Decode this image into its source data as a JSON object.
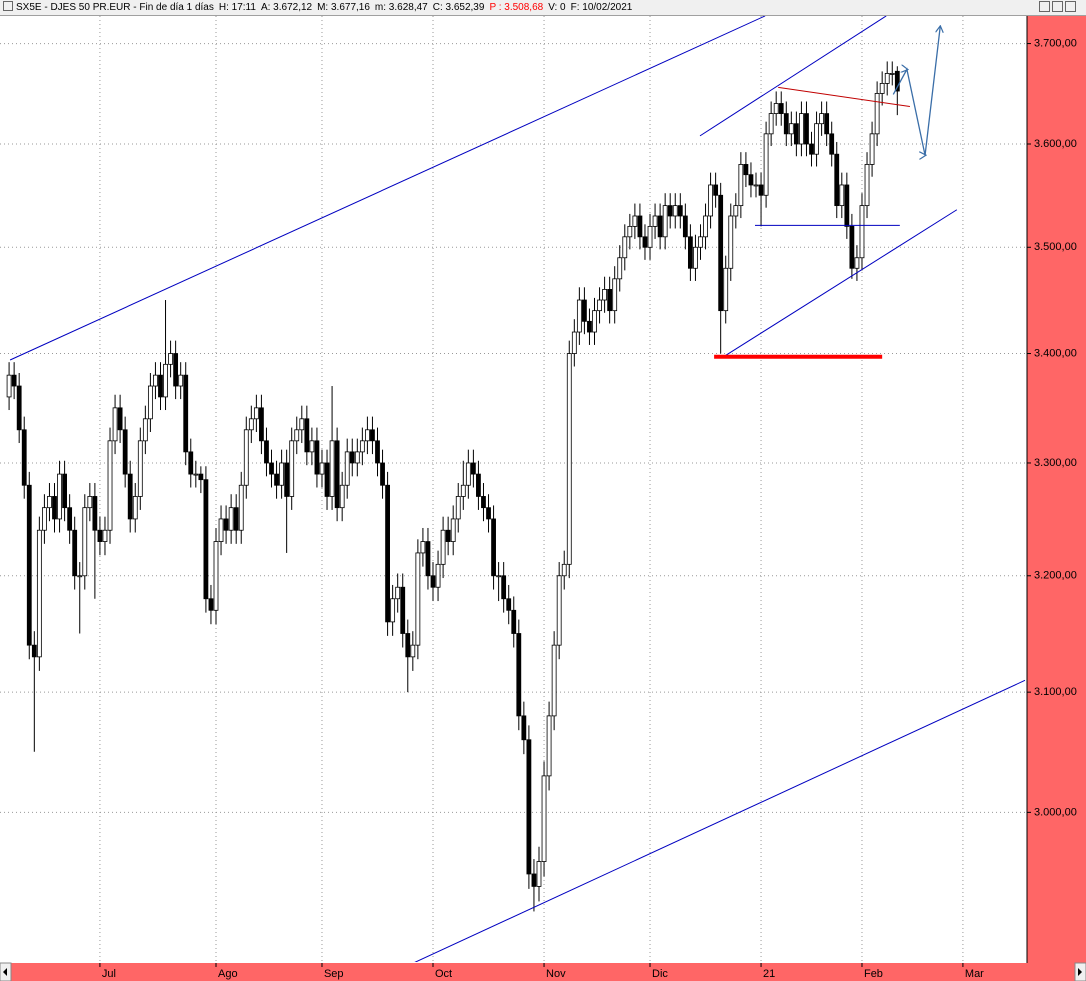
{
  "header": {
    "symbol": "SX5E - DJES 50 PR.EUR - Fin de día 1 días",
    "fields": [
      "H: 17:11",
      "A: 3.672,12",
      "M: 3.677,16",
      "m: 3.628,47",
      "C: 3.652,39",
      "P : 3.508,68",
      "V: 0",
      "F: 10/02/2021"
    ],
    "highlight_field": 5,
    "highlight_color": "#ff0000"
  },
  "chart_data": {
    "type": "candlestick",
    "log_scale": true,
    "grid": true,
    "up_color": "#ffffff",
    "down_color": "#000000",
    "xlim": [
      -1.8,
      201.5
    ],
    "ylim": [
      2880,
      3732
    ],
    "xticks": [
      {
        "value": 18,
        "label": "Jul"
      },
      {
        "value": 41,
        "label": "Ago"
      },
      {
        "value": 62,
        "label": "Sep"
      },
      {
        "value": 84,
        "label": "Oct"
      },
      {
        "value": 106,
        "label": "Nov"
      },
      {
        "value": 127,
        "label": "Dic"
      },
      {
        "value": 149,
        "label": "21"
      },
      {
        "value": 169,
        "label": "Feb"
      },
      {
        "value": 189,
        "label": "Mar"
      }
    ],
    "yticks": [
      {
        "value": 3000,
        "label": "3.000,00"
      },
      {
        "value": 3100,
        "label": "3.100,00"
      },
      {
        "value": 3200,
        "label": "3.200,00"
      },
      {
        "value": 3300,
        "label": "3.300,00"
      },
      {
        "value": 3400,
        "label": "3.400,00"
      },
      {
        "value": 3500,
        "label": "3.500,00"
      },
      {
        "value": 3600,
        "label": "3.600,00"
      },
      {
        "value": 3700,
        "label": "3.700,00"
      }
    ],
    "open": [
      3360,
      3380,
      3370,
      3330,
      3280,
      3140,
      3130,
      3240,
      3260,
      3270,
      3250,
      3290,
      3260,
      3240,
      3200,
      3200,
      3260,
      3270,
      3240,
      3230,
      3240,
      3320,
      3350,
      3330,
      3290,
      3250,
      3270,
      3320,
      3340,
      3370,
      3380,
      3360,
      3390,
      3400,
      3370,
      3380,
      3310,
      3290,
      3290,
      3285,
      3180,
      3170,
      3230,
      3250,
      3240,
      3260,
      3240,
      3280,
      3330,
      3340,
      3350,
      3320,
      3300,
      3290,
      3280,
      3300,
      3270,
      3320,
      3330,
      3340,
      3310,
      3320,
      3290,
      3300,
      3270,
      3320,
      3260,
      3280,
      3310,
      3300,
      3310,
      3320,
      3330,
      3320,
      3300,
      3280,
      3160,
      3180,
      3190,
      3150,
      3130,
      3140,
      3220,
      3230,
      3200,
      3190,
      3210,
      3240,
      3230,
      3250,
      3270,
      3280,
      3300,
      3290,
      3270,
      3260,
      3250,
      3200,
      3200,
      3180,
      3170,
      3150,
      3080,
      3060,
      2950,
      2940,
      2960,
      3030,
      3080,
      3140,
      3200,
      3210,
      3400,
      3420,
      3450,
      3430,
      3420,
      3440,
      3450,
      3460,
      3440,
      3470,
      3490,
      3510,
      3520,
      3530,
      3510,
      3500,
      3520,
      3530,
      3510,
      3540,
      3530,
      3540,
      3530,
      3510,
      3480,
      3500,
      3510,
      3530,
      3560,
      3550,
      3440,
      3480,
      3530,
      3540,
      3580,
      3570,
      3560,
      3560,
      3550,
      3610,
      3630,
      3640,
      3630,
      3610,
      3620,
      3600,
      3630,
      3600,
      3590,
      3620,
      3630,
      3610,
      3590,
      3540,
      3560,
      3520,
      3480,
      3490,
      3540,
      3580,
      3610,
      3650,
      3660,
      3670,
      3672.12
    ],
    "high": [
      3392,
      3392,
      3382,
      3342,
      3292,
      3152,
      3252,
      3272,
      3282,
      3282,
      3302,
      3302,
      3272,
      3252,
      3212,
      3272,
      3282,
      3282,
      3252,
      3252,
      3332,
      3362,
      3362,
      3342,
      3302,
      3282,
      3332,
      3352,
      3382,
      3392,
      3392,
      3450,
      3412,
      3412,
      3392,
      3392,
      3322,
      3302,
      3297,
      3297,
      3192,
      3242,
      3262,
      3262,
      3272,
      3272,
      3292,
      3342,
      3352,
      3362,
      3362,
      3332,
      3312,
      3302,
      3312,
      3312,
      3332,
      3342,
      3352,
      3352,
      3332,
      3332,
      3312,
      3312,
      3370,
      3332,
      3292,
      3322,
      3322,
      3322,
      3332,
      3342,
      3342,
      3332,
      3312,
      3292,
      3192,
      3202,
      3202,
      3162,
      3152,
      3232,
      3242,
      3242,
      3212,
      3222,
      3252,
      3252,
      3262,
      3282,
      3302,
      3312,
      3312,
      3302,
      3282,
      3272,
      3262,
      3212,
      3212,
      3192,
      3182,
      3162,
      3092,
      3072,
      2962,
      2972,
      3042,
      3092,
      3152,
      3212,
      3222,
      3412,
      3432,
      3462,
      3462,
      3442,
      3452,
      3462,
      3472,
      3472,
      3482,
      3502,
      3522,
      3532,
      3542,
      3542,
      3522,
      3532,
      3542,
      3542,
      3552,
      3552,
      3552,
      3552,
      3542,
      3522,
      3512,
      3522,
      3542,
      3572,
      3572,
      3562,
      3492,
      3542,
      3552,
      3592,
      3592,
      3582,
      3572,
      3572,
      3622,
      3642,
      3652,
      3652,
      3642,
      3632,
      3632,
      3642,
      3642,
      3612,
      3632,
      3642,
      3642,
      3622,
      3602,
      3572,
      3572,
      3532,
      3502,
      3552,
      3592,
      3622,
      3662,
      3672,
      3682,
      3682,
      3677.16
    ],
    "low": [
      3348,
      3358,
      3318,
      3268,
      3128,
      3050,
      3118,
      3228,
      3248,
      3238,
      3238,
      3248,
      3228,
      3188,
      3150,
      3188,
      3248,
      3180,
      3218,
      3218,
      3228,
      3308,
      3318,
      3278,
      3238,
      3238,
      3258,
      3308,
      3328,
      3358,
      3348,
      3348,
      3378,
      3358,
      3358,
      3298,
      3278,
      3278,
      3273,
      3168,
      3158,
      3158,
      3218,
      3228,
      3228,
      3228,
      3228,
      3268,
      3318,
      3328,
      3308,
      3288,
      3278,
      3268,
      3268,
      3220,
      3258,
      3308,
      3318,
      3298,
      3298,
      3278,
      3278,
      3258,
      3258,
      3248,
      3248,
      3268,
      3288,
      3288,
      3298,
      3308,
      3308,
      3288,
      3268,
      3148,
      3148,
      3168,
      3138,
      3100,
      3118,
      3128,
      3208,
      3188,
      3178,
      3178,
      3198,
      3218,
      3218,
      3238,
      3258,
      3268,
      3278,
      3258,
      3248,
      3238,
      3188,
      3178,
      3168,
      3158,
      3138,
      3068,
      3048,
      2938,
      2920,
      2928,
      2948,
      3018,
      3068,
      3128,
      3188,
      3198,
      3388,
      3408,
      3418,
      3408,
      3408,
      3428,
      3438,
      3428,
      3428,
      3458,
      3478,
      3498,
      3508,
      3498,
      3488,
      3488,
      3508,
      3498,
      3498,
      3518,
      3518,
      3518,
      3498,
      3468,
      3468,
      3488,
      3498,
      3518,
      3538,
      3400,
      3428,
      3468,
      3518,
      3528,
      3558,
      3548,
      3548,
      3520,
      3538,
      3598,
      3618,
      3618,
      3598,
      3598,
      3588,
      3588,
      3588,
      3578,
      3578,
      3608,
      3598,
      3578,
      3528,
      3528,
      3508,
      3470,
      3468,
      3478,
      3528,
      3568,
      3598,
      3638,
      3648,
      3658,
      3628.47
    ],
    "close": [
      3380,
      3370,
      3330,
      3280,
      3140,
      3130,
      3240,
      3260,
      3270,
      3250,
      3290,
      3260,
      3240,
      3200,
      3200,
      3260,
      3270,
      3240,
      3230,
      3240,
      3320,
      3350,
      3330,
      3290,
      3250,
      3270,
      3320,
      3340,
      3370,
      3380,
      3360,
      3390,
      3400,
      3370,
      3380,
      3310,
      3290,
      3290,
      3285,
      3180,
      3170,
      3230,
      3250,
      3240,
      3260,
      3240,
      3280,
      3330,
      3340,
      3350,
      3320,
      3300,
      3290,
      3280,
      3300,
      3270,
      3320,
      3330,
      3340,
      3310,
      3320,
      3290,
      3300,
      3270,
      3320,
      3260,
      3280,
      3310,
      3300,
      3310,
      3320,
      3330,
      3320,
      3300,
      3280,
      3160,
      3180,
      3190,
      3150,
      3130,
      3140,
      3220,
      3230,
      3200,
      3190,
      3210,
      3240,
      3230,
      3250,
      3270,
      3280,
      3300,
      3290,
      3270,
      3260,
      3250,
      3200,
      3200,
      3180,
      3170,
      3150,
      3080,
      3060,
      2950,
      2940,
      2960,
      3030,
      3080,
      3140,
      3200,
      3210,
      3400,
      3420,
      3450,
      3430,
      3420,
      3440,
      3450,
      3460,
      3440,
      3470,
      3490,
      3510,
      3520,
      3530,
      3510,
      3500,
      3520,
      3530,
      3510,
      3540,
      3530,
      3540,
      3530,
      3510,
      3480,
      3500,
      3510,
      3530,
      3560,
      3550,
      3440,
      3480,
      3530,
      3540,
      3580,
      3570,
      3560,
      3560,
      3550,
      3610,
      3630,
      3640,
      3630,
      3610,
      3620,
      3600,
      3630,
      3600,
      3590,
      3620,
      3630,
      3610,
      3590,
      3540,
      3560,
      3520,
      3480,
      3490,
      3540,
      3580,
      3610,
      3650,
      3660,
      3670,
      3670,
      3652.39
    ],
    "lines": [
      {
        "color": "#0000c0",
        "width": 1,
        "x": [
          0.2,
          149.8
        ],
        "y": [
          3394,
          3728
        ]
      },
      {
        "color": "#0000c0",
        "width": 1,
        "x": [
          80,
          201.3
        ],
        "y": [
          2879,
          3110
        ]
      },
      {
        "color": "#0000c0",
        "width": 1,
        "x": [
          136.9,
          173.8
        ],
        "y": [
          3608,
          3728
        ]
      },
      {
        "color": "#0000c0",
        "width": 1,
        "x": [
          141.9,
          187.8
        ],
        "y": [
          3398,
          3536
        ]
      },
      {
        "color": "#c00000",
        "width": 1,
        "x": [
          152.4,
          178.5
        ],
        "y": [
          3656,
          3637
        ]
      },
      {
        "color": "#0000c0",
        "width": 1,
        "x": [
          147.8,
          176.5
        ],
        "y": [
          3521,
          3521
        ]
      },
      {
        "color": "#ff0000",
        "width": 4,
        "x": [
          139.7,
          173
        ],
        "y": [
          3397,
          3397
        ]
      },
      {
        "color": "#3a6ea8",
        "width": 1.3,
        "arrow": true,
        "x": [
          175.2,
          177.9,
          181.5,
          184.5
        ],
        "y": [
          3649,
          3674,
          3589,
          3717
        ]
      }
    ]
  }
}
